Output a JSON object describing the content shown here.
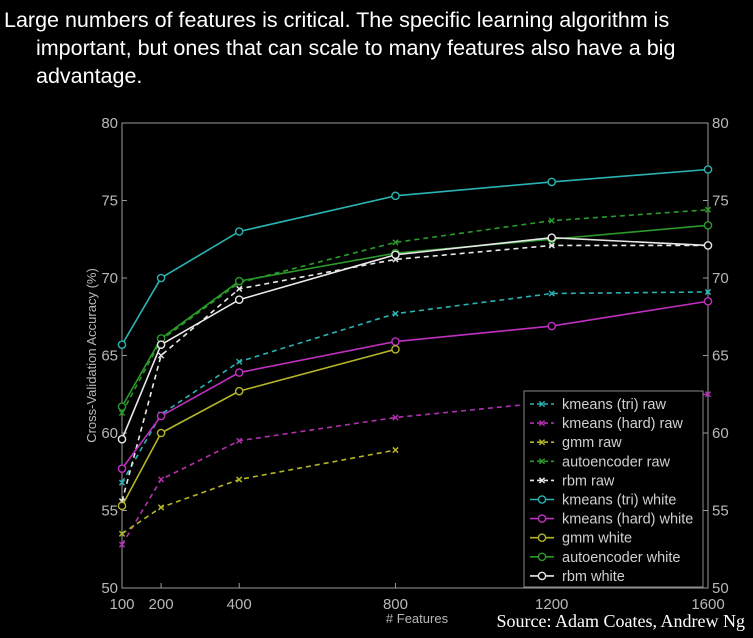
{
  "headline": {
    "line1": "Large numbers of features is critical. The specific learning algorithm is",
    "line2": "important, but ones that can scale to many features also have a big",
    "line3": "advantage."
  },
  "source": "Source: Adam Coates, Andrew Ng",
  "chart_data": {
    "type": "line",
    "title": "",
    "xlabel": "# Features",
    "ylabel": "Cross-Validation Accuracy (%)",
    "xlim": [
      100,
      1600
    ],
    "ylim": [
      50,
      80
    ],
    "x_ticks": [
      100,
      200,
      400,
      800,
      1200,
      1600
    ],
    "y_ticks": [
      50,
      55,
      60,
      65,
      70,
      75,
      80
    ],
    "y_axis_right_mirror": true,
    "grid": false,
    "legend_position": "lower-right",
    "series": [
      {
        "name": "kmeans (tri) raw",
        "color": "#2bb3b3",
        "dash": true,
        "marker": "x",
        "x": [
          100,
          200,
          400,
          800,
          1200,
          1600
        ],
        "values": [
          56.8,
          61.2,
          64.6,
          67.7,
          69.0,
          69.1
        ]
      },
      {
        "name": "kmeans (hard) raw",
        "color": "#b030b0",
        "dash": true,
        "marker": "x",
        "x": [
          100,
          200,
          400,
          800,
          1200,
          1600
        ],
        "values": [
          52.8,
          57.0,
          59.5,
          61.0,
          62.0,
          62.5
        ]
      },
      {
        "name": "gmm raw",
        "color": "#b5b52a",
        "dash": true,
        "marker": "x",
        "x": [
          100,
          200,
          400,
          800
        ],
        "values": [
          53.5,
          55.2,
          57.0,
          58.9
        ]
      },
      {
        "name": "autoencoder raw",
        "color": "#2a9a2a",
        "dash": true,
        "marker": "x",
        "x": [
          100,
          200,
          400,
          800,
          1200,
          1600
        ],
        "values": [
          61.3,
          66.0,
          69.7,
          72.3,
          73.7,
          74.4
        ]
      },
      {
        "name": "rbm raw",
        "color": "#e8e8e8",
        "dash": true,
        "marker": "x",
        "x": [
          100,
          200,
          400,
          800,
          1200,
          1600
        ],
        "values": [
          55.6,
          65.0,
          69.3,
          71.2,
          72.1,
          72.1
        ]
      },
      {
        "name": "kmeans (tri) white",
        "color": "#2bb3b3",
        "dash": false,
        "marker": "o",
        "x": [
          100,
          200,
          400,
          800,
          1200,
          1600
        ],
        "values": [
          65.7,
          70.0,
          73.0,
          75.3,
          76.2,
          77.0
        ]
      },
      {
        "name": "kmeans (hard) white",
        "color": "#c030c0",
        "dash": false,
        "marker": "o",
        "x": [
          100,
          200,
          400,
          800,
          1200,
          1600
        ],
        "values": [
          57.7,
          61.1,
          63.9,
          65.9,
          66.9,
          68.5
        ]
      },
      {
        "name": "gmm white",
        "color": "#b5b52a",
        "dash": false,
        "marker": "o",
        "x": [
          100,
          200,
          400,
          800
        ],
        "values": [
          55.3,
          60.0,
          62.7,
          65.4
        ]
      },
      {
        "name": "autoencoder white",
        "color": "#2a9a2a",
        "dash": false,
        "marker": "o",
        "x": [
          100,
          200,
          400,
          800,
          1200,
          1600
        ],
        "values": [
          61.7,
          66.1,
          69.8,
          71.6,
          72.5,
          73.4
        ]
      },
      {
        "name": "rbm white",
        "color": "#e8e8e8",
        "dash": false,
        "marker": "o",
        "x": [
          100,
          200,
          400,
          800,
          1200,
          1600
        ],
        "values": [
          59.6,
          65.7,
          68.6,
          71.5,
          72.6,
          72.1
        ]
      }
    ]
  }
}
